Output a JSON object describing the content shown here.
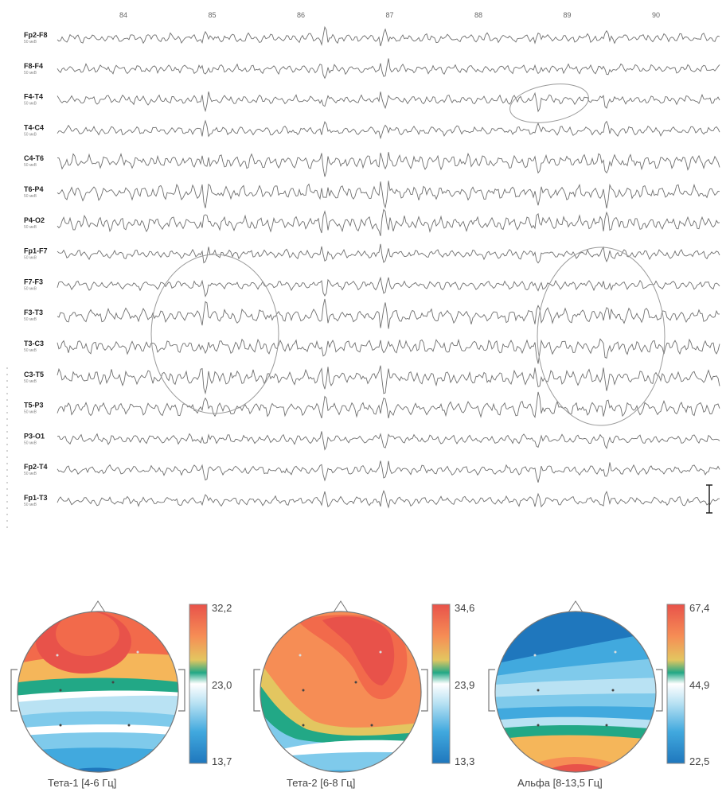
{
  "eeg": {
    "time_ticks": [
      "84",
      "85",
      "86",
      "87",
      "88",
      "89",
      "90"
    ],
    "leads": [
      {
        "name": "Fp2-F8",
        "unit": "50 мкВ"
      },
      {
        "name": "F8-F4",
        "unit": "50 мкВ"
      },
      {
        "name": "F4-T4",
        "unit": "50 мкВ"
      },
      {
        "name": "T4-C4",
        "unit": "50 мкВ"
      },
      {
        "name": "C4-T6",
        "unit": "50 мкВ"
      },
      {
        "name": "T6-P4",
        "unit": "50 мкВ"
      },
      {
        "name": "P4-O2",
        "unit": "50 мкВ"
      },
      {
        "name": "Fp1-F7",
        "unit": "50 мкВ"
      },
      {
        "name": "F7-F3",
        "unit": "50 мкВ"
      },
      {
        "name": "F3-T3",
        "unit": "50 мкВ"
      },
      {
        "name": "T3-C3",
        "unit": "50 мкВ"
      },
      {
        "name": "C3-T5",
        "unit": "50 мкВ"
      },
      {
        "name": "T5-P3",
        "unit": "50 мкВ"
      },
      {
        "name": "P3-O1",
        "unit": "50 мкВ"
      },
      {
        "name": "Fp2-T4",
        "unit": "50 мкВ"
      },
      {
        "name": "Fp1-T3",
        "unit": "50 мкВ"
      }
    ]
  },
  "maps": [
    {
      "caption": "Тета-1  [4-6 Гц]",
      "scale_max": "32,2",
      "scale_mid": "23,0",
      "scale_min": "13,7"
    },
    {
      "caption": "Тета-2  [6-8 Гц]",
      "scale_max": "34,6",
      "scale_mid": "23,9",
      "scale_min": "13,3"
    },
    {
      "caption": "Альфа  [8-13,5 Гц]",
      "scale_max": "67,4",
      "scale_mid": "44,9",
      "scale_min": "22,5"
    }
  ],
  "colors": {
    "trace": "#6f6f6f",
    "scale": [
      "#e8524a",
      "#f26a4b",
      "#f68d55",
      "#f5b65a",
      "#e3c660",
      "#7fc46e",
      "#22a886",
      "#ffffff",
      "#b9e2f3",
      "#7fcaeb",
      "#41a9de",
      "#1f77bd"
    ]
  }
}
